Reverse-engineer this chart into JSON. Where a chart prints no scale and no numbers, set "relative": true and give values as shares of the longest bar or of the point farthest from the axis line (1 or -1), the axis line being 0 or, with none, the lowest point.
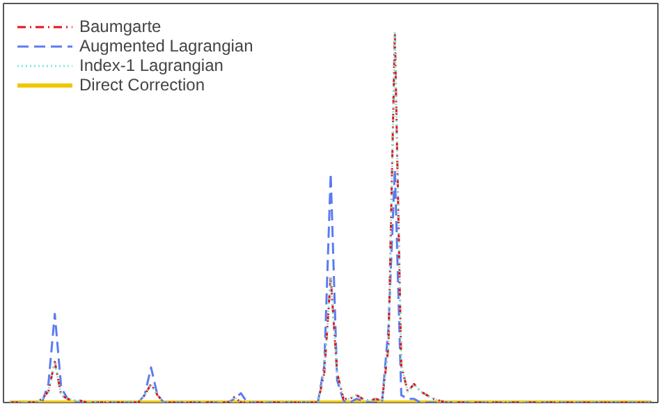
{
  "chart_data": {
    "type": "line",
    "relative": true,
    "categories": [
      null,
      null,
      null,
      null,
      null,
      null,
      null,
      null,
      null,
      null,
      null,
      null,
      null,
      null,
      null,
      null,
      null,
      null,
      null,
      null,
      null,
      null,
      null,
      null,
      null,
      null,
      null,
      null,
      null,
      null,
      null,
      null,
      null,
      null,
      null,
      null,
      null,
      null,
      null,
      null,
      null,
      null,
      null,
      null,
      null,
      null,
      null,
      null,
      null,
      null,
      null,
      null,
      null,
      null,
      null,
      null,
      null,
      null,
      null,
      null,
      null,
      null,
      null,
      null,
      null,
      null,
      null,
      null,
      null,
      null,
      null,
      null,
      null,
      null,
      null,
      null,
      null,
      null,
      null,
      null,
      null,
      null,
      null,
      null,
      null,
      null,
      null,
      null,
      null,
      null,
      null,
      null,
      null,
      null,
      null,
      null,
      null,
      null,
      null,
      null,
      null
    ],
    "legend": "top left",
    "grid": false,
    "marker": "none",
    "series": [
      {
        "name": "Baumgarte",
        "color": "#e8101a",
        "line_style": "dashdot",
        "values": [
          0,
          0,
          0,
          0,
          0,
          0.01,
          0.03,
          0.11,
          0.02,
          0.01,
          0.005,
          0.005,
          0,
          0,
          0,
          0,
          0,
          0,
          0,
          0,
          0,
          0.02,
          0.05,
          0.02,
          0,
          0,
          0,
          0,
          0,
          0,
          0,
          0,
          0,
          0,
          0,
          0.015,
          0,
          0,
          0,
          0,
          0,
          0,
          0,
          0,
          0,
          0,
          0,
          0,
          0,
          0.08,
          0.34,
          0.08,
          0.01,
          0.01,
          0.02,
          0.01,
          0.005,
          0.01,
          0.005,
          0.15,
          1,
          0.1,
          0.03,
          0.05,
          0.03,
          0.02,
          0.01,
          0.005,
          0,
          0,
          0,
          0,
          0,
          0,
          0,
          0,
          0,
          0,
          0,
          0,
          0,
          0,
          0,
          0,
          0,
          0,
          0,
          0,
          0,
          0,
          0,
          0,
          0,
          0,
          0,
          0,
          0,
          0,
          0,
          0,
          0
        ]
      },
      {
        "name": "Augmented Lagrangian",
        "color": "#5b7cf0",
        "line_style": "dashed",
        "values": [
          0,
          0,
          0,
          0,
          0,
          0,
          0.05,
          0.24,
          0.04,
          0.01,
          0,
          0,
          0,
          0,
          0,
          0,
          0,
          0,
          0,
          0,
          0,
          0.02,
          0.095,
          0.02,
          0,
          0,
          0,
          0,
          0,
          0,
          0,
          0,
          0,
          0,
          0,
          0.01,
          0.025,
          0,
          0,
          0,
          0,
          0,
          0,
          0,
          0,
          0,
          0,
          0,
          0,
          0.1,
          0.62,
          0.06,
          0.005,
          0,
          0.01,
          0.005,
          0,
          0,
          0,
          0.2,
          0.63,
          0.02,
          0.01,
          0.01,
          0,
          0,
          0,
          0,
          0,
          0,
          0,
          0,
          0,
          0,
          0,
          0,
          0,
          0,
          0,
          0,
          0,
          0,
          0,
          0,
          0,
          0,
          0,
          0,
          0,
          0,
          0,
          0,
          0,
          0,
          0,
          0,
          0,
          0,
          0,
          0,
          0
        ]
      },
      {
        "name": "Index-1 Lagrangian",
        "color": "#7fe8e0",
        "line_style": "dotted",
        "values": [
          0,
          0,
          0,
          0,
          0,
          0.01,
          0.03,
          0.11,
          0.02,
          0.01,
          0.005,
          0.005,
          0,
          0,
          0,
          0,
          0,
          0,
          0,
          0,
          0,
          0.02,
          0.05,
          0.02,
          0,
          0,
          0,
          0,
          0,
          0,
          0,
          0,
          0,
          0,
          0,
          0.015,
          0,
          0,
          0,
          0,
          0,
          0,
          0,
          0,
          0,
          0,
          0,
          0,
          0,
          0.08,
          0.34,
          0.08,
          0.01,
          0.01,
          0.02,
          0.01,
          0.005,
          0.01,
          0.005,
          0.15,
          1,
          0.1,
          0.03,
          0.05,
          0.03,
          0.02,
          0.01,
          0.005,
          0,
          0,
          0,
          0,
          0,
          0,
          0,
          0,
          0,
          0,
          0,
          0,
          0,
          0,
          0,
          0,
          0,
          0,
          0,
          0,
          0,
          0,
          0,
          0,
          0,
          0,
          0,
          0,
          0,
          0,
          0,
          0,
          0
        ]
      },
      {
        "name": "Direct Correction",
        "color": "#f0c800",
        "line_style": "solid",
        "values": [
          0,
          0,
          0,
          0,
          0,
          0,
          0,
          0,
          0,
          0,
          0,
          0,
          0,
          0,
          0,
          0,
          0,
          0,
          0,
          0,
          0,
          0,
          0,
          0,
          0,
          0,
          0,
          0,
          0,
          0,
          0,
          0,
          0,
          0,
          0,
          0,
          0,
          0,
          0,
          0,
          0,
          0,
          0,
          0,
          0,
          0,
          0,
          0,
          0,
          0,
          0,
          0,
          0,
          0,
          0,
          0,
          0,
          0,
          0,
          0,
          0,
          0,
          0,
          0,
          0,
          0,
          0,
          0,
          0,
          0,
          0,
          0,
          0,
          0,
          0,
          0,
          0,
          0,
          0,
          0,
          0,
          0,
          0,
          0,
          0,
          0,
          0,
          0,
          0,
          0,
          0,
          0,
          0,
          0,
          0,
          0,
          0,
          0,
          0,
          0,
          0
        ]
      }
    ]
  }
}
